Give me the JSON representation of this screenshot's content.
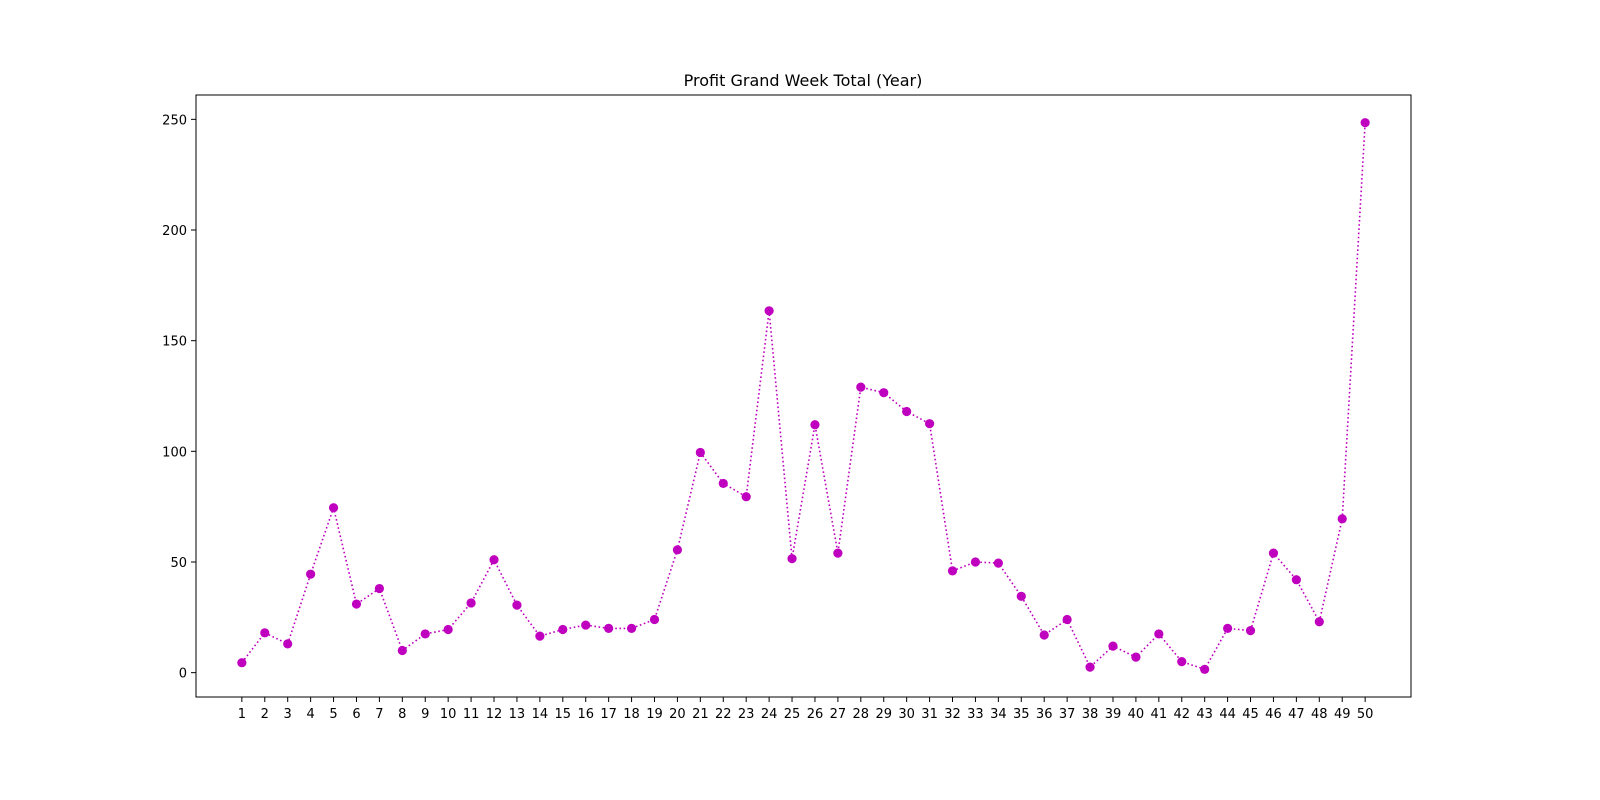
{
  "chart_data": {
    "type": "line",
    "title": "Profit Grand Week Total (Year)",
    "xlabel": "",
    "ylabel": "",
    "x": [
      1,
      2,
      3,
      4,
      5,
      6,
      7,
      8,
      9,
      10,
      11,
      12,
      13,
      14,
      15,
      16,
      17,
      18,
      19,
      20,
      21,
      22,
      23,
      24,
      25,
      26,
      27,
      28,
      29,
      30,
      31,
      32,
      33,
      34,
      35,
      36,
      37,
      38,
      39,
      40,
      41,
      42,
      43,
      44,
      45,
      46,
      47,
      48,
      49,
      50
    ],
    "x_tick_labels": [
      "1",
      "2",
      "3",
      "4",
      "5",
      "6",
      "7",
      "8",
      "9",
      "10",
      "11",
      "12",
      "13",
      "14",
      "15",
      "16",
      "17",
      "18",
      "19",
      "20",
      "21",
      "22",
      "23",
      "24",
      "25",
      "26",
      "27",
      "28",
      "29",
      "30",
      "31",
      "32",
      "33",
      "34",
      "35",
      "36",
      "37",
      "38",
      "39",
      "40",
      "41",
      "42",
      "43",
      "44",
      "45",
      "46",
      "47",
      "48",
      "49",
      "50"
    ],
    "series": [
      {
        "values": [
          4.5,
          18,
          13,
          44.5,
          74.5,
          31,
          38,
          10,
          17.5,
          19.5,
          31.5,
          51,
          30.5,
          16.5,
          19.5,
          21.5,
          20,
          20,
          24,
          55.5,
          99.5,
          85.5,
          79.5,
          163.5,
          51.5,
          112,
          54,
          129,
          126.5,
          118,
          112.5,
          46,
          50,
          49.5,
          34.5,
          17,
          24,
          2.5,
          12,
          7,
          17.5,
          5,
          1.5,
          20,
          19,
          54,
          42,
          23,
          69.5,
          248.5
        ]
      }
    ],
    "y_ticks": [
      0,
      50,
      100,
      150,
      200,
      250
    ],
    "y_tick_labels": [
      "0",
      "50",
      "100",
      "150",
      "200",
      "250"
    ],
    "xlim": [
      -1,
      52
    ],
    "ylim": [
      -11,
      261
    ],
    "grid": false,
    "line_style": "dotted",
    "marker": "circle",
    "colors": {
      "series": "#bf00bf",
      "axes": "#000000",
      "background": "#ffffff"
    }
  }
}
